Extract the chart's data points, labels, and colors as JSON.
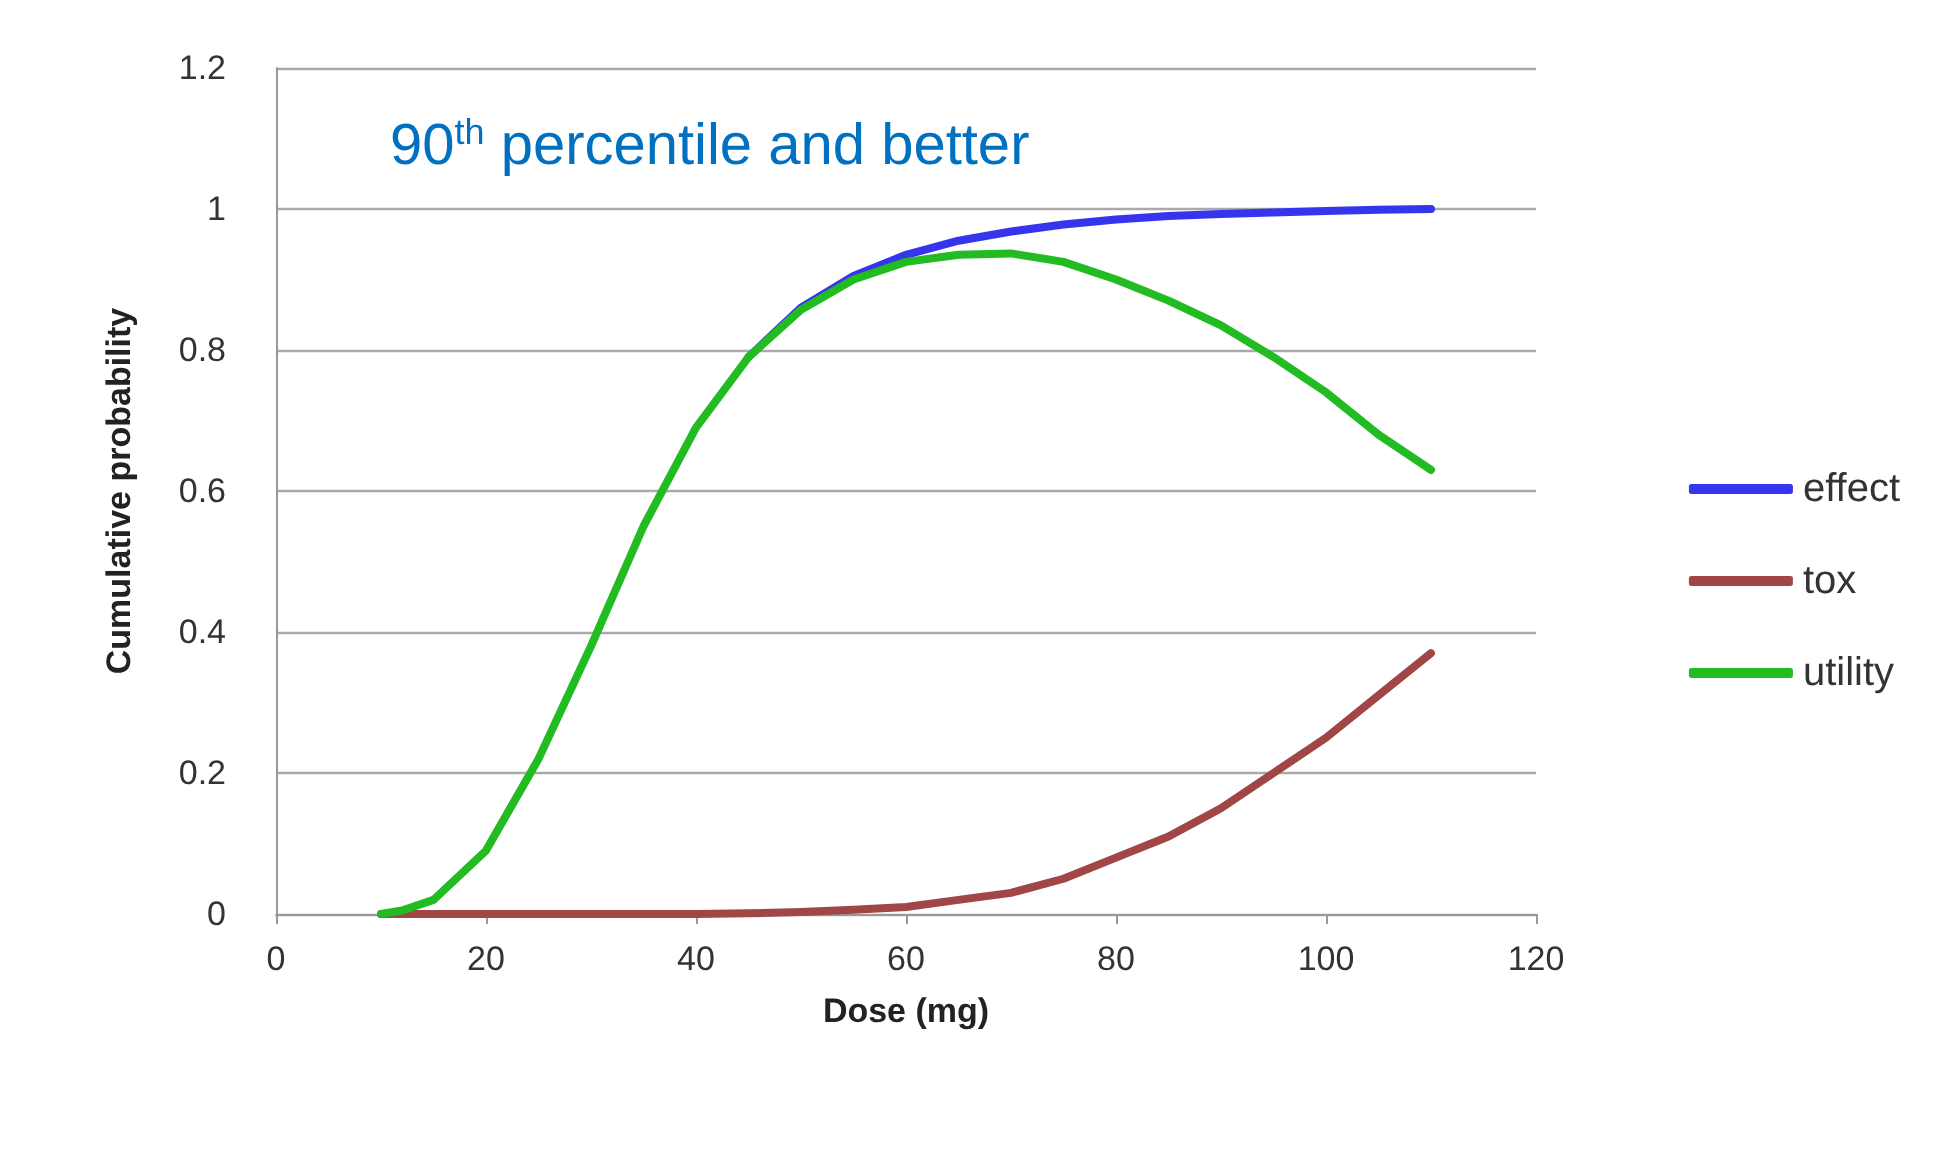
{
  "chart_data": {
    "type": "line",
    "xlabel": "Dose (mg)",
    "ylabel": "Cumulative probability",
    "annotations": [
      "90$^{th}$ percentile and better"
    ],
    "x": [
      10,
      12,
      15,
      20,
      25,
      30,
      35,
      40,
      45,
      50,
      55,
      60,
      65,
      70,
      75,
      80,
      85,
      90,
      95,
      100,
      105,
      110
    ],
    "series": [
      {
        "name": "effect",
        "color": "#3535ee",
        "values": [
          null,
          null,
          null,
          null,
          null,
          null,
          null,
          null,
          0.79,
          0.86,
          0.905,
          0.935,
          0.955,
          0.968,
          0.978,
          0.985,
          0.99,
          0.993,
          0.995,
          0.997,
          0.999,
          1.0
        ]
      },
      {
        "name": "tox",
        "color": "#a04646",
        "values": [
          0,
          0,
          0,
          0,
          0,
          0,
          0,
          0,
          0.001,
          0.003,
          0.006,
          0.01,
          0.02,
          0.03,
          0.05,
          0.08,
          0.11,
          0.15,
          0.2,
          0.25,
          0.31,
          0.37
        ]
      },
      {
        "name": "utility",
        "color": "#22bb22",
        "values": [
          0,
          0.005,
          0.02,
          0.09,
          0.22,
          0.38,
          0.55,
          0.69,
          0.79,
          0.857,
          0.9,
          0.925,
          0.935,
          0.937,
          0.925,
          0.9,
          0.87,
          0.835,
          0.79,
          0.74,
          0.68,
          0.63
        ]
      }
    ],
    "xlim": [
      0,
      120
    ],
    "xticks": [
      0,
      20,
      40,
      60,
      80,
      100,
      120
    ],
    "ylim": [
      0,
      1.2
    ],
    "yticks": [
      0,
      0.2,
      0.4,
      0.6,
      0.8,
      1,
      1.2
    ],
    "grid": "y",
    "legend": "right",
    "marker": "none",
    "line_style": "solid"
  }
}
